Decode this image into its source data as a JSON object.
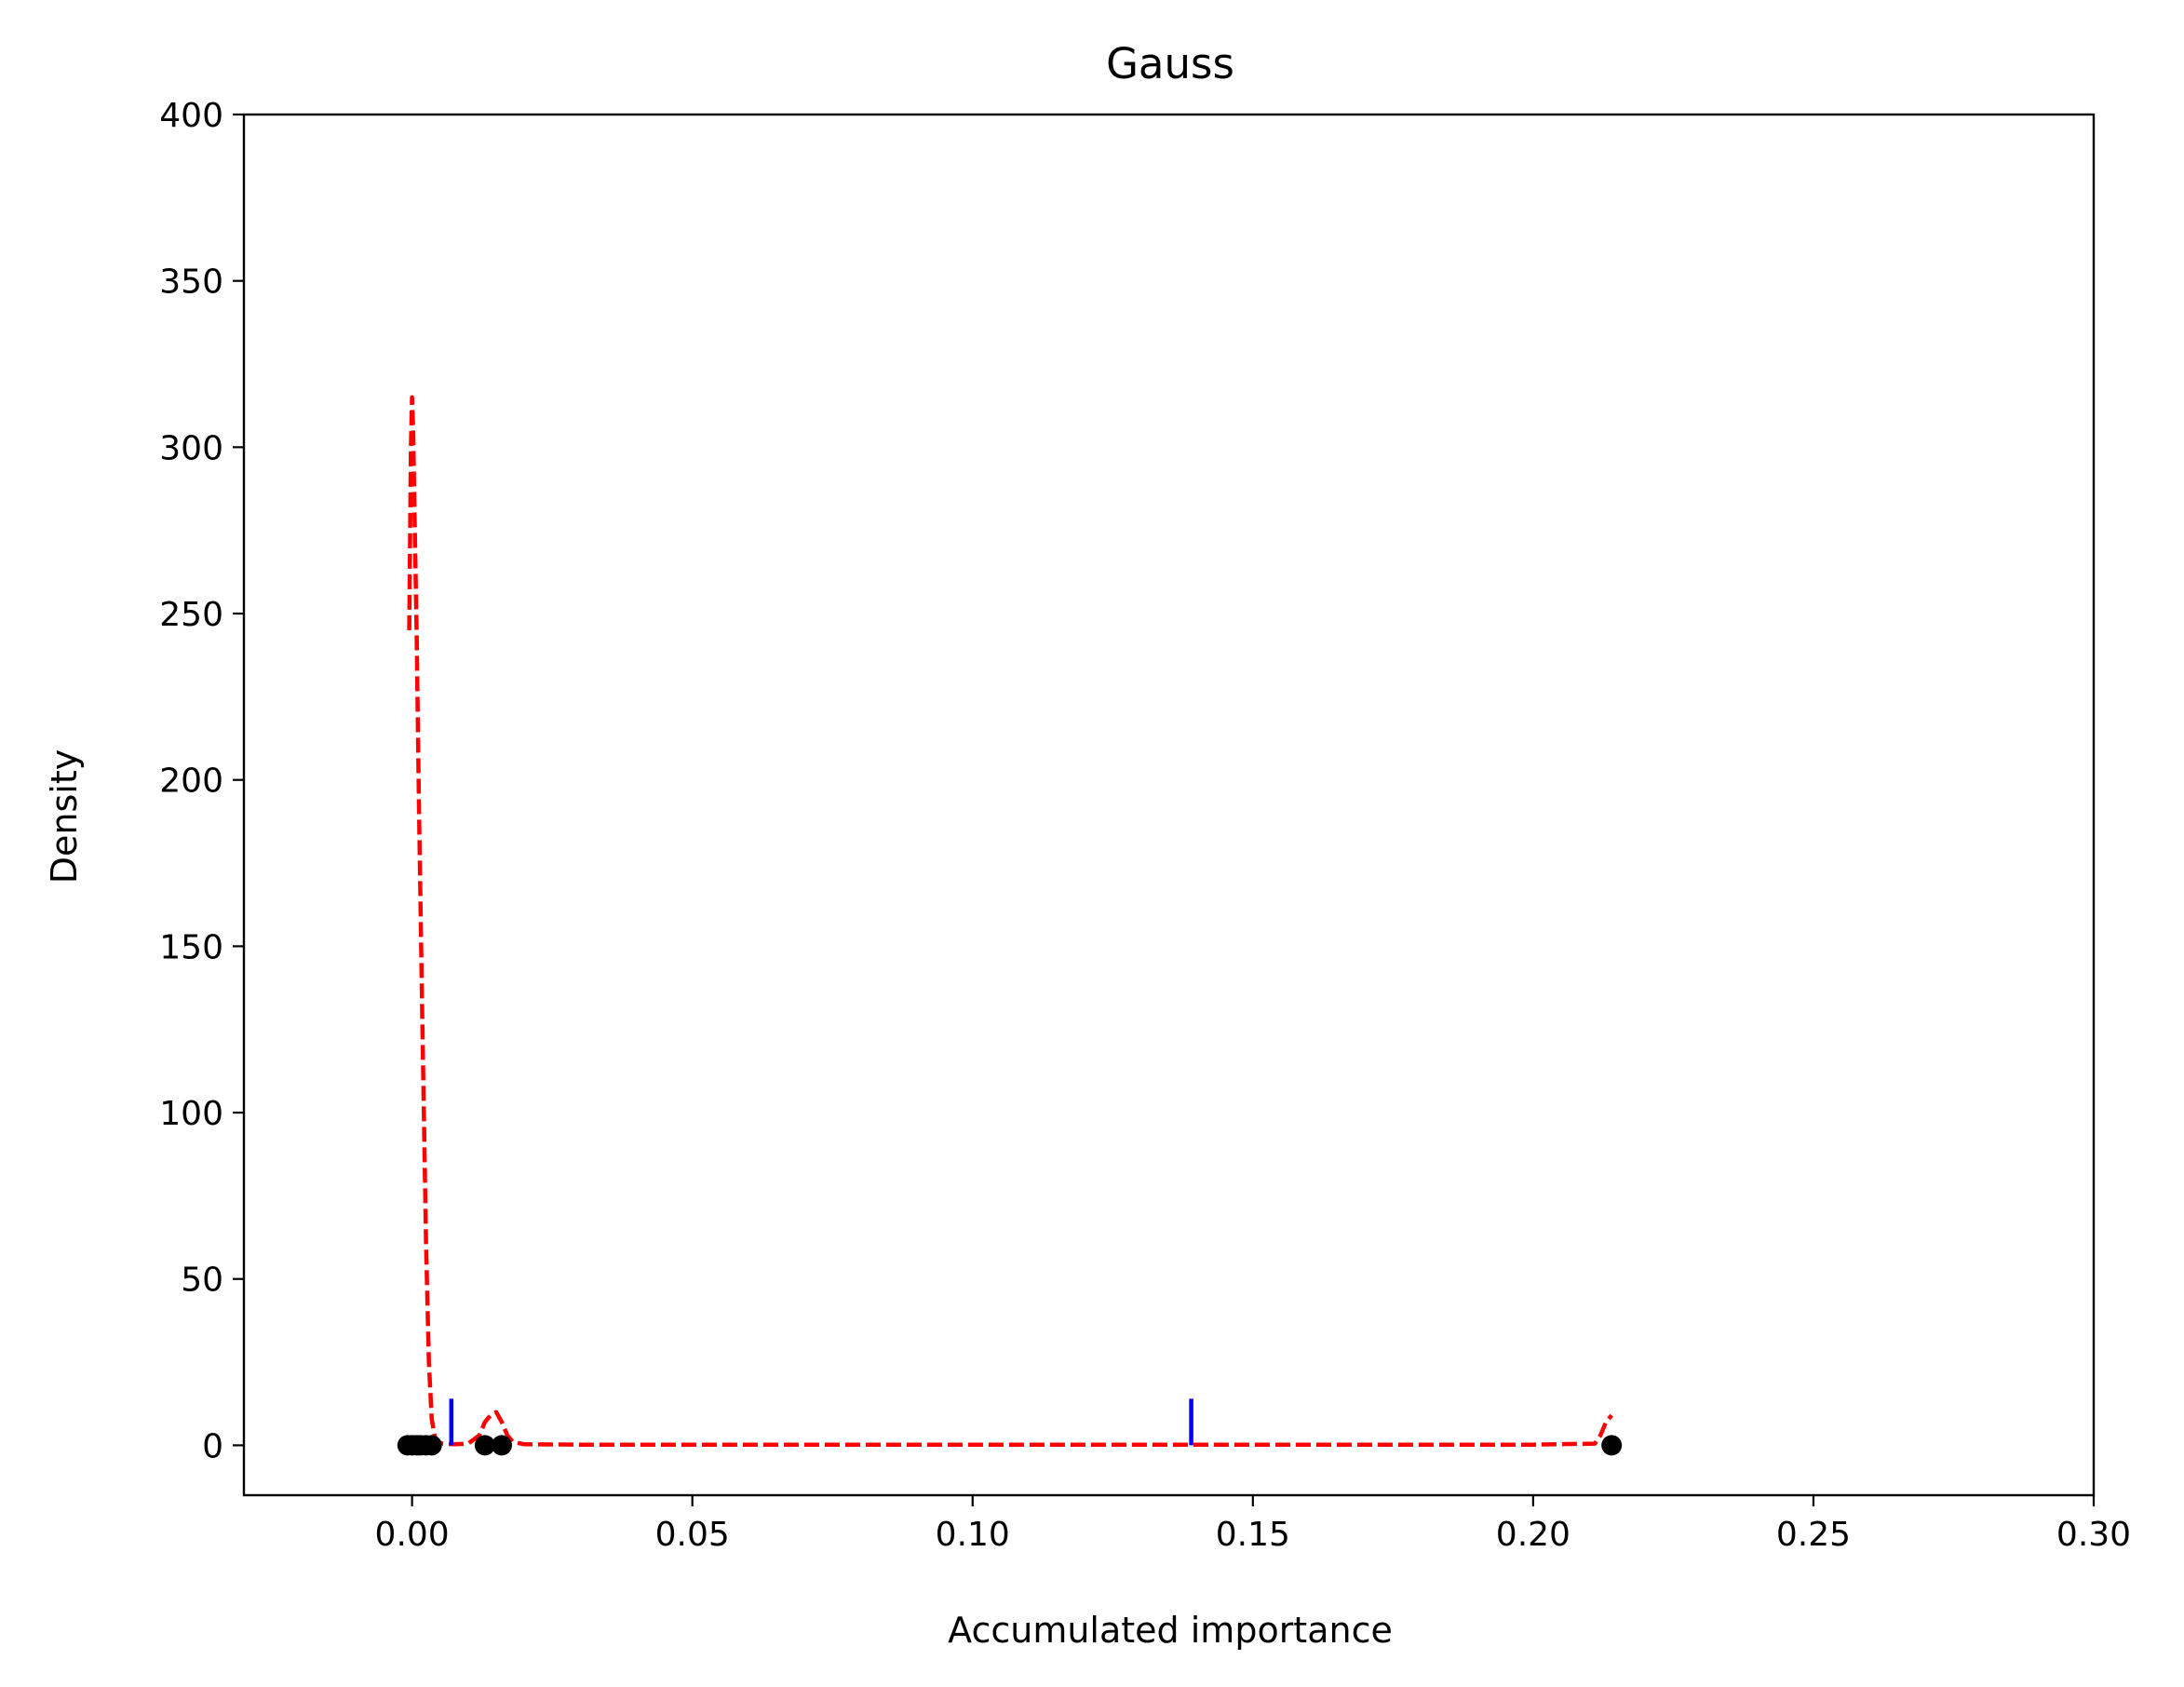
{
  "chart_data": {
    "type": "line",
    "title": "Gauss",
    "xlabel": "Accumulated importance",
    "ylabel": "Density",
    "xlim": [
      -0.03,
      0.3
    ],
    "ylim": [
      -15,
      400
    ],
    "x_ticks": [
      "0.00",
      "0.05",
      "0.10",
      "0.15",
      "0.20",
      "0.25",
      "0.30"
    ],
    "x_tick_values": [
      0.0,
      0.05,
      0.1,
      0.15,
      0.2,
      0.25,
      0.3
    ],
    "y_ticks": [
      "0",
      "50",
      "100",
      "150",
      "200",
      "250",
      "300",
      "350",
      "400"
    ],
    "y_tick_values": [
      0,
      50,
      100,
      150,
      200,
      250,
      300,
      350,
      400
    ],
    "grid": false,
    "series": [
      {
        "style": "dashed",
        "color": "#ff0000",
        "x": [
          -0.0005,
          -0.0002,
          0.0,
          0.0002,
          0.0005,
          0.0008,
          0.0012,
          0.0018,
          0.0025,
          0.003,
          0.0035,
          0.004,
          0.0045,
          0.0055,
          0.0075,
          0.01,
          0.012,
          0.013,
          0.014,
          0.015,
          0.016,
          0.017,
          0.018,
          0.02,
          0.03,
          0.08,
          0.15,
          0.2,
          0.211,
          0.212,
          0.213,
          0.214
        ],
        "y": [
          245,
          300,
          315,
          305,
          275,
          245,
          195,
          130,
          60,
          25,
          8,
          3,
          1,
          0.5,
          0.3,
          0.5,
          3,
          7,
          9,
          10,
          7,
          3,
          1,
          0.3,
          0.2,
          0.2,
          0.2,
          0.2,
          0.5,
          3,
          7,
          9
        ]
      }
    ],
    "vertical_markers": {
      "color": "#0000ff",
      "x": [
        0.007,
        0.139
      ],
      "y_from": 0,
      "y_to": 14
    },
    "points": {
      "color": "#000000",
      "x": [
        -0.0008,
        0.0,
        0.0008,
        0.0015,
        0.0025,
        0.0035,
        0.013,
        0.016,
        0.214
      ],
      "y": [
        0,
        0,
        0,
        0,
        0,
        0,
        0,
        0,
        0
      ]
    }
  }
}
